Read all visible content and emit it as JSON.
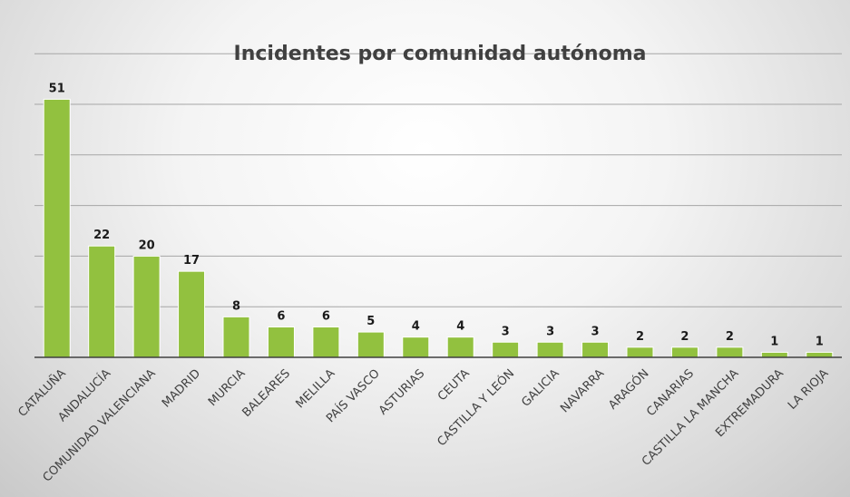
{
  "chart_data": {
    "type": "bar",
    "title": "Incidentes por comunidad autónoma",
    "xlabel": "",
    "ylabel": "",
    "categories": [
      "CATALUÑA",
      "ANDALUCÍA",
      "COMUNIDAD VALENCIANA",
      "MADRID",
      "MURCIA",
      "BALEARES",
      "MELILLA",
      "PAÍS VASCO",
      "ASTURIAS",
      "CEUTA",
      "CASTILLA Y LEÓN",
      "GALICIA",
      "NAVARRA",
      "ARAGÓN",
      "CANARIAS",
      "CASTILLA LA MANCHA",
      "EXTREMADURA",
      "LA RIOJA"
    ],
    "values": [
      51,
      22,
      20,
      17,
      8,
      6,
      6,
      5,
      4,
      4,
      3,
      3,
      3,
      2,
      2,
      2,
      1,
      1
    ],
    "ylim": [
      0,
      60
    ],
    "gridlines": [
      10,
      20,
      30,
      40,
      50,
      60
    ],
    "grid": true,
    "legend": "none",
    "data_labels": true,
    "bar_color": "#92c13f",
    "bar_stroke": "#ffffff",
    "grid_color": "#a6a6a6",
    "axis_color": "#404040"
  }
}
